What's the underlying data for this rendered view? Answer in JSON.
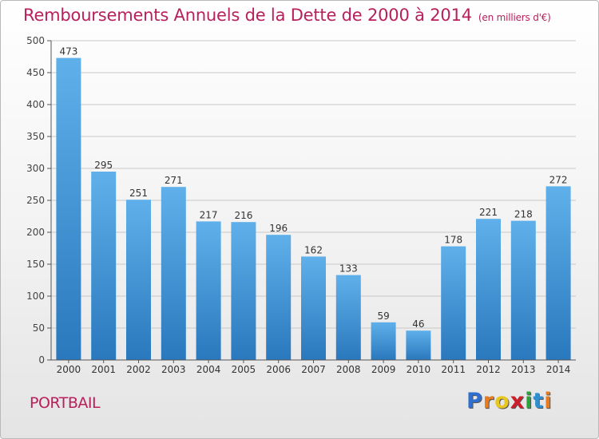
{
  "chart_data": {
    "type": "bar",
    "title": "Remboursements Annuels de la Dette de 2000 à 2014",
    "subtitle": "(en milliers d'€)",
    "categories": [
      "2000",
      "2001",
      "2002",
      "2003",
      "2004",
      "2005",
      "2006",
      "2007",
      "2008",
      "2009",
      "2010",
      "2011",
      "2012",
      "2013",
      "2014"
    ],
    "values": [
      473,
      295,
      251,
      271,
      217,
      216,
      196,
      162,
      133,
      59,
      46,
      178,
      221,
      218,
      272
    ],
    "ylim": [
      0,
      500
    ],
    "yticks": [
      0,
      50,
      100,
      150,
      200,
      250,
      300,
      350,
      400,
      450,
      500
    ],
    "grid": true,
    "bar_color": "#3a8fd6"
  },
  "footer": {
    "commune": "PORTBAIL",
    "logo_letters": [
      "P",
      "r",
      "o",
      "x",
      "i",
      "t",
      "i"
    ],
    "logo_colors": [
      "#2f6fd0",
      "#e87b1e",
      "#e8c81e",
      "#cc1f2a",
      "#2aa33a",
      "#2f8fd0",
      "#e87b1e"
    ]
  },
  "colors": {
    "title": "#b8205c",
    "grid": "#c8c8c8"
  }
}
